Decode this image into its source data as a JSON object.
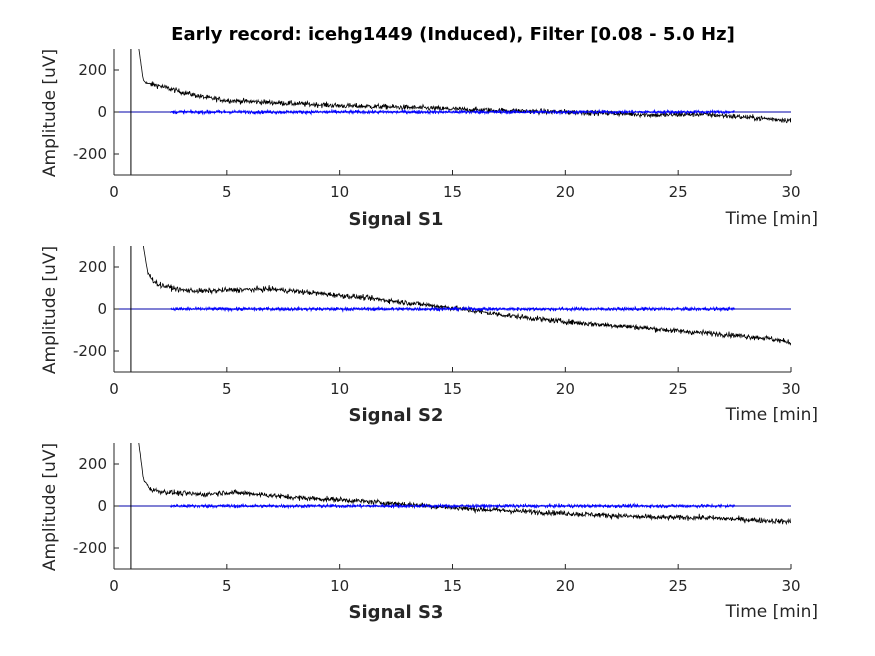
{
  "chart_data": {
    "type": "line",
    "title": "Early record: icehg1449 (Induced), Filter [0.08 - 5.0 Hz]",
    "xlim": [
      0,
      30
    ],
    "ylim": [
      -300,
      300
    ],
    "xticks": [
      0,
      5,
      10,
      15,
      20,
      25,
      30
    ],
    "yticks": [
      -200,
      0,
      200
    ],
    "xlabel": "Time [min]",
    "ylabel": "Amplitude [uV]",
    "event_marker_x": 0.75,
    "colors": {
      "raw": "#000000",
      "filtered": "#0000ff",
      "zero_line": "#0000aa"
    },
    "panels": [
      {
        "label": "Signal S1",
        "series": [
          {
            "x": [
              1.1,
              1.3,
              1.5,
              2,
              3,
              4,
              5,
              6,
              8,
              10,
              12,
              14,
              16,
              18,
              20,
              22,
              24,
              26,
              28,
              30
            ],
            "y": [
              300,
              150,
              135,
              125,
              95,
              70,
              55,
              50,
              40,
              30,
              25,
              18,
              10,
              5,
              0,
              -5,
              -15,
              -10,
              -25,
              -40
            ]
          },
          {
            "x": [
              2.5,
              27.5
            ],
            "y": [
              0,
              0
            ]
          }
        ]
      },
      {
        "label": "Signal S2",
        "series": [
          {
            "x": [
              1.3,
              1.5,
              1.8,
              2,
              3,
              4,
              5,
              7,
              9,
              11,
              13,
              15,
              17,
              19,
              21,
              23,
              25,
              27,
              29,
              30
            ],
            "y": [
              300,
              170,
              130,
              115,
              90,
              85,
              90,
              95,
              75,
              55,
              30,
              5,
              -25,
              -50,
              -70,
              -85,
              -105,
              -120,
              -140,
              -160
            ]
          },
          {
            "x": [
              2.5,
              27.5
            ],
            "y": [
              0,
              0
            ]
          }
        ]
      },
      {
        "label": "Signal S3",
        "series": [
          {
            "x": [
              1.1,
              1.3,
              1.6,
              2,
              3,
              4,
              5,
              6,
              8,
              10,
              12,
              14,
              16,
              18,
              20,
              22,
              24,
              26,
              28,
              30
            ],
            "y": [
              300,
              130,
              80,
              70,
              60,
              55,
              65,
              60,
              40,
              30,
              15,
              0,
              -15,
              -25,
              -35,
              -45,
              -55,
              -55,
              -65,
              -75
            ]
          },
          {
            "x": [
              2.5,
              27.5
            ],
            "y": [
              0,
              0
            ]
          }
        ]
      }
    ]
  }
}
